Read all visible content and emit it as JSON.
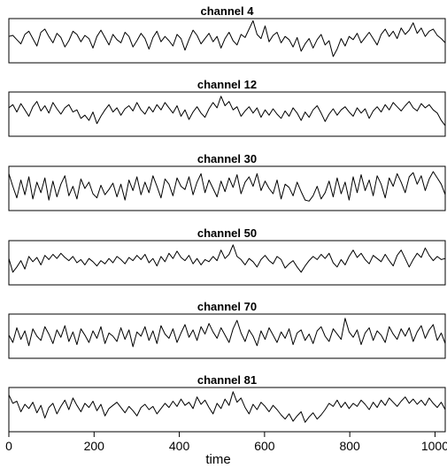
{
  "chart_data": {
    "type": "line",
    "xlabel": "time",
    "xlim": [
      0,
      1024
    ],
    "xticks": [
      0,
      200,
      400,
      600,
      800,
      1000
    ],
    "grid": false,
    "legend": "none",
    "line_color": "#000000",
    "panels": [
      {
        "title": "channel  4",
        "ylim": [
          -1.05,
          1.05
        ],
        "y": [
          0.2,
          0.25,
          0.05,
          -0.15,
          0.3,
          0.45,
          0.1,
          -0.25,
          0.4,
          0.55,
          0.2,
          -0.1,
          0.35,
          0.15,
          -0.3,
          0.0,
          0.45,
          0.3,
          -0.05,
          0.25,
          0.1,
          -0.35,
          0.2,
          0.5,
          0.15,
          -0.2,
          0.3,
          0.05,
          -0.1,
          0.4,
          0.2,
          -0.3,
          0.0,
          0.35,
          0.1,
          -0.4,
          0.15,
          0.45,
          -0.05,
          0.2,
          0.0,
          -0.25,
          0.3,
          0.1,
          -0.45,
          0.05,
          0.5,
          0.25,
          -0.15,
          0.1,
          0.35,
          -0.05,
          0.2,
          -0.35,
          0.1,
          0.4,
          0.0,
          -0.2,
          0.3,
          0.15,
          0.55,
          0.95,
          0.3,
          0.1,
          0.7,
          -0.05,
          0.25,
          0.4,
          -0.1,
          0.2,
          0.05,
          -0.3,
          0.15,
          -0.5,
          -0.15,
          0.1,
          -0.35,
          0.05,
          0.3,
          -0.2,
          0.0,
          -0.75,
          -0.4,
          0.1,
          -0.25,
          0.2,
          0.05,
          0.35,
          -0.1,
          0.15,
          0.4,
          0.1,
          -0.2,
          0.3,
          0.55,
          0.2,
          0.45,
          0.1,
          0.6,
          0.3,
          0.5,
          0.85,
          0.35,
          0.6,
          0.2,
          0.45,
          0.55,
          0.25,
          0.1,
          -0.1
        ]
      },
      {
        "title": "channel  12",
        "ylim": [
          -1.05,
          1.05
        ],
        "y": [
          0.3,
          0.45,
          0.1,
          0.5,
          0.2,
          -0.1,
          0.35,
          0.6,
          0.15,
          0.4,
          0.05,
          0.55,
          0.25,
          0.0,
          0.3,
          0.45,
          0.1,
          0.2,
          -0.2,
          -0.05,
          -0.3,
          0.1,
          -0.45,
          -0.1,
          0.2,
          0.45,
          0.1,
          0.3,
          -0.05,
          0.25,
          0.4,
          0.15,
          0.55,
          0.2,
          0.0,
          0.35,
          0.1,
          0.45,
          0.2,
          0.55,
          0.3,
          0.05,
          0.4,
          -0.1,
          0.2,
          -0.25,
          0.1,
          0.35,
          0.05,
          -0.15,
          0.25,
          0.55,
          0.3,
          0.85,
          0.4,
          0.6,
          0.2,
          0.35,
          -0.1,
          0.15,
          0.35,
          0.05,
          0.3,
          -0.15,
          0.2,
          -0.05,
          0.25,
          0.0,
          -0.2,
          0.15,
          -0.1,
          0.3,
          0.05,
          -0.3,
          0.1,
          -0.15,
          0.2,
          0.4,
          0.05,
          -0.35,
          0.0,
          0.25,
          -0.05,
          0.2,
          0.35,
          0.1,
          -0.1,
          0.3,
          0.05,
          0.25,
          -0.2,
          0.15,
          0.35,
          0.1,
          0.45,
          0.2,
          0.55,
          0.35,
          0.15,
          0.4,
          0.6,
          0.3,
          0.15,
          0.5,
          0.3,
          0.45,
          0.2,
          0.05,
          -0.3,
          -0.55
        ]
      },
      {
        "title": "channel  30",
        "ylim": [
          -1.05,
          1.05
        ],
        "y": [
          0.7,
          0.1,
          -0.45,
          0.4,
          -0.3,
          0.55,
          -0.5,
          0.3,
          -0.2,
          0.5,
          -0.55,
          0.35,
          -0.4,
          0.2,
          0.6,
          -0.35,
          0.1,
          -0.5,
          0.45,
          0.0,
          0.3,
          -0.25,
          -0.45,
          0.15,
          -0.3,
          -0.05,
          0.25,
          -0.4,
          0.2,
          -0.55,
          0.4,
          -0.1,
          0.55,
          -0.3,
          0.3,
          -0.2,
          0.6,
          0.1,
          -0.45,
          0.45,
          0.2,
          -0.35,
          0.5,
          0.1,
          -0.05,
          0.55,
          -0.3,
          0.3,
          0.7,
          -0.2,
          0.4,
          0.0,
          -0.4,
          0.35,
          -0.15,
          0.5,
          0.05,
          0.65,
          -0.25,
          0.3,
          0.55,
          0.1,
          0.7,
          -0.1,
          0.35,
          0.0,
          -0.25,
          0.4,
          -0.5,
          0.2,
          0.05,
          -0.35,
          0.3,
          -0.15,
          -0.55,
          -0.6,
          -0.35,
          0.1,
          -0.5,
          -0.2,
          0.35,
          -0.4,
          0.5,
          -0.25,
          0.3,
          -0.55,
          0.55,
          -0.2,
          0.65,
          -0.1,
          0.4,
          -0.35,
          0.6,
          0.2,
          -0.45,
          0.5,
          0.1,
          0.7,
          0.3,
          -0.2,
          0.55,
          0.75,
          0.2,
          0.6,
          -0.1,
          0.45,
          0.8,
          0.5,
          0.2,
          -0.3
        ]
      },
      {
        "title": "channel  50",
        "ylim": [
          -1.05,
          1.05
        ],
        "y": [
          0.2,
          -0.45,
          -0.2,
          0.1,
          -0.3,
          0.3,
          0.05,
          0.25,
          -0.1,
          0.35,
          0.15,
          0.4,
          0.2,
          0.45,
          0.25,
          0.1,
          0.3,
          0.0,
          0.15,
          -0.1,
          0.2,
          0.05,
          -0.15,
          0.1,
          -0.05,
          0.2,
          0.0,
          0.3,
          0.15,
          -0.05,
          0.25,
          0.1,
          0.35,
          0.15,
          0.4,
          0.0,
          0.2,
          -0.15,
          0.3,
          0.05,
          0.45,
          0.2,
          0.55,
          0.25,
          0.1,
          0.35,
          -0.05,
          0.2,
          -0.1,
          0.15,
          0.05,
          0.3,
          0.1,
          0.6,
          0.2,
          0.4,
          0.85,
          0.3,
          0.15,
          -0.1,
          0.2,
          0.05,
          -0.2,
          0.15,
          0.35,
          0.1,
          -0.05,
          0.3,
          0.15,
          -0.25,
          -0.05,
          0.1,
          -0.2,
          -0.45,
          -0.15,
          0.1,
          0.3,
          0.15,
          0.4,
          0.2,
          0.45,
          0.0,
          -0.2,
          0.15,
          -0.1,
          0.3,
          0.6,
          0.25,
          0.45,
          0.15,
          -0.05,
          0.35,
          0.2,
          0.05,
          0.4,
          0.1,
          -0.15,
          0.35,
          0.6,
          0.2,
          -0.2,
          0.15,
          0.45,
          0.25,
          0.7,
          0.35,
          0.1,
          0.3,
          0.15,
          0.2
        ]
      },
      {
        "title": "channel  70",
        "ylim": [
          -1.05,
          1.05
        ],
        "y": [
          0.05,
          -0.3,
          0.4,
          -0.15,
          0.25,
          -0.45,
          0.35,
          0.0,
          -0.2,
          0.45,
          0.1,
          -0.35,
          0.3,
          -0.05,
          0.5,
          -0.25,
          0.2,
          -0.4,
          0.35,
          0.05,
          -0.3,
          0.25,
          -0.1,
          0.45,
          -0.35,
          0.15,
          0.0,
          -0.25,
          0.4,
          -0.15,
          0.3,
          -0.5,
          0.2,
          0.0,
          0.45,
          -0.2,
          0.25,
          -0.35,
          0.5,
          0.1,
          -0.1,
          0.35,
          -0.3,
          0.15,
          0.55,
          -0.05,
          0.3,
          -0.2,
          0.45,
          0.1,
          0.6,
          0.2,
          -0.1,
          0.4,
          0.05,
          -0.3,
          0.35,
          0.75,
          0.15,
          -0.25,
          0.3,
          0.0,
          -0.45,
          0.25,
          -0.15,
          0.4,
          0.05,
          -0.3,
          0.2,
          -0.1,
          0.35,
          -0.4,
          0.15,
          0.3,
          -0.2,
          0.1,
          -0.35,
          0.25,
          0.45,
          0.0,
          -0.25,
          0.35,
          0.1,
          -0.15,
          0.85,
          0.2,
          -0.05,
          0.3,
          -0.4,
          0.15,
          0.4,
          -0.2,
          0.25,
          0.05,
          -0.3,
          0.45,
          0.1,
          -0.15,
          0.35,
          0.0,
          0.4,
          -0.25,
          0.2,
          0.5,
          -0.1,
          0.3,
          0.55,
          -0.2,
          0.15,
          -0.35
        ]
      },
      {
        "title": "channel  81",
        "ylim": [
          -1.05,
          1.05
        ],
        "y": [
          0.7,
          0.3,
          0.4,
          -0.1,
          0.25,
          0.05,
          0.35,
          -0.15,
          0.2,
          -0.4,
          0.1,
          0.3,
          -0.2,
          0.15,
          0.45,
          0.0,
          0.55,
          0.2,
          -0.1,
          0.3,
          0.1,
          0.4,
          -0.05,
          0.25,
          -0.3,
          0.05,
          0.2,
          0.35,
          0.1,
          -0.15,
          0.15,
          -0.05,
          -0.3,
          0.1,
          0.25,
          0.0,
          0.15,
          -0.2,
          0.05,
          0.3,
          0.1,
          0.4,
          0.15,
          0.5,
          0.2,
          0.35,
          0.05,
          0.6,
          0.25,
          0.45,
          0.1,
          -0.2,
          0.3,
          0.05,
          0.5,
          0.2,
          0.85,
          0.35,
          0.55,
          0.1,
          -0.2,
          0.25,
          0.0,
          0.35,
          0.15,
          -0.1,
          0.2,
          0.0,
          -0.25,
          -0.45,
          -0.2,
          -0.55,
          -0.3,
          -0.1,
          -0.6,
          -0.35,
          -0.15,
          -0.45,
          -0.25,
          0.0,
          0.3,
          0.15,
          0.45,
          0.1,
          0.35,
          0.05,
          0.3,
          0.15,
          0.45,
          0.25,
          0.0,
          0.35,
          0.1,
          0.45,
          0.2,
          0.55,
          0.35,
          0.15,
          0.4,
          0.6,
          0.3,
          0.5,
          0.25,
          0.45,
          0.2,
          0.55,
          0.3,
          0.1,
          0.35,
          0.0
        ]
      }
    ]
  }
}
